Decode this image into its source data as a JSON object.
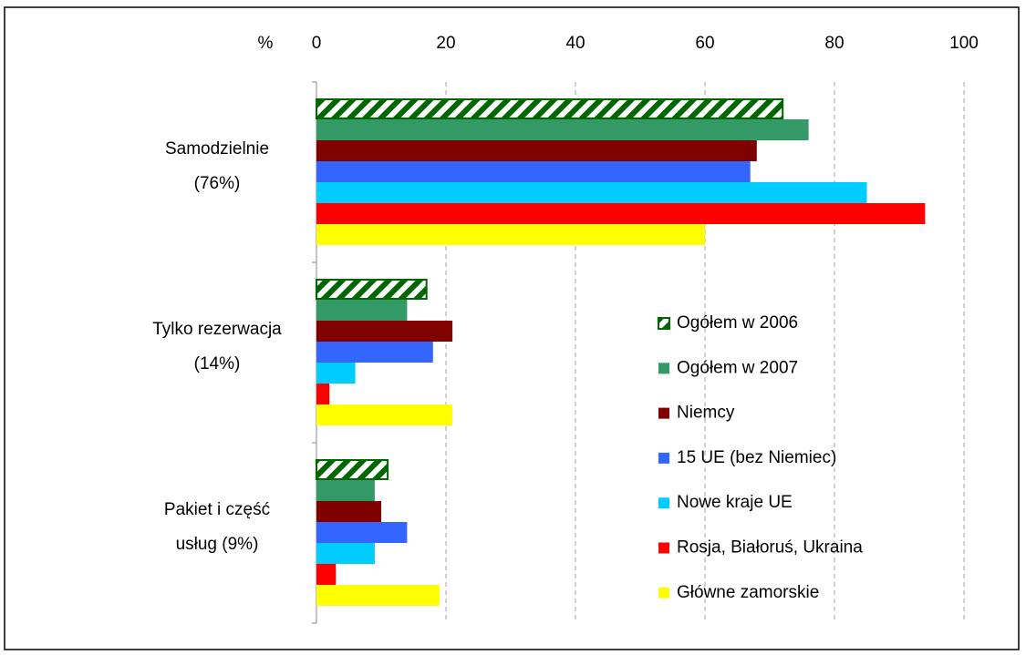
{
  "chart_data": {
    "type": "hbar",
    "xlabel": "%",
    "categories": [
      [
        "Samodzielnie",
        "(76%)"
      ],
      [
        "Tylko rezerwacja",
        "(14%)"
      ],
      [
        "Pakiet i część",
        "usług (9%)"
      ]
    ],
    "series": [
      {
        "name": "Ogółem w 2006",
        "color": "#006600",
        "pattern": "hatch",
        "values": [
          72,
          17,
          11
        ]
      },
      {
        "name": "Ogółem w 2007",
        "color": "#339966",
        "values": [
          76,
          14,
          9
        ]
      },
      {
        "name": "Niemcy",
        "color": "#800000",
        "values": [
          68,
          21,
          10
        ]
      },
      {
        "name": "15 UE (bez Niemiec)",
        "color": "#3366ff",
        "values": [
          67,
          18,
          14
        ]
      },
      {
        "name": "Nowe kraje UE",
        "color": "#00ccff",
        "values": [
          85,
          6,
          9
        ]
      },
      {
        "name": "Rosja, Białoruś, Ukraina",
        "color": "#ff0000",
        "values": [
          94,
          2,
          3
        ]
      },
      {
        "name": "Główne zamorskie",
        "color": "#ffff00",
        "values": [
          60,
          21,
          19
        ]
      }
    ],
    "xlim": [
      0,
      100
    ],
    "xticks": [
      0,
      20,
      40,
      60,
      80,
      100
    ],
    "grid": true,
    "legend": "right"
  }
}
